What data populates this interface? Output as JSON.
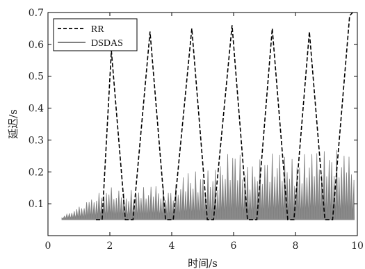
{
  "chart_data": {
    "type": "line",
    "xlabel": "时间/s",
    "ylabel": "延迟/s",
    "xlim": [
      0,
      10
    ],
    "ylim": [
      0,
      0.7
    ],
    "x_ticks": [
      "0",
      "2",
      "4",
      "6",
      "8",
      "10"
    ],
    "y_ticks": [
      "0.1",
      "0.2",
      "0.3",
      "0.4",
      "0.5",
      "0.6",
      "0.7"
    ],
    "legend_position": "top-left",
    "series": [
      {
        "name": "RR",
        "style": "dashed",
        "color": "#000000",
        "x": [
          1.55,
          1.75,
          2.05,
          2.5,
          2.75,
          3.3,
          3.8,
          4.05,
          4.65,
          5.15,
          5.35,
          5.95,
          6.45,
          6.75,
          7.25,
          7.75,
          7.95,
          8.45,
          8.95,
          9.2,
          9.75,
          9.85
        ],
        "y": [
          0.05,
          0.05,
          0.58,
          0.05,
          0.05,
          0.64,
          0.05,
          0.05,
          0.65,
          0.05,
          0.05,
          0.66,
          0.05,
          0.05,
          0.65,
          0.05,
          0.05,
          0.64,
          0.05,
          0.05,
          0.69,
          0.7
        ]
      },
      {
        "name": "DSDAS",
        "style": "solid",
        "color": "#808080",
        "x": [
          0.45,
          1.0,
          1.5,
          2.0,
          2.5,
          3.0,
          3.5,
          4.0,
          4.5,
          5.0,
          5.5,
          6.0,
          6.5,
          7.0,
          7.5,
          8.0,
          8.5,
          9.0,
          9.5,
          9.9
        ],
        "y": [
          0.06,
          0.1,
          0.14,
          0.17,
          0.15,
          0.16,
          0.17,
          0.15,
          0.21,
          0.2,
          0.22,
          0.28,
          0.22,
          0.25,
          0.27,
          0.24,
          0.28,
          0.28,
          0.29,
          0.27
        ]
      }
    ]
  }
}
